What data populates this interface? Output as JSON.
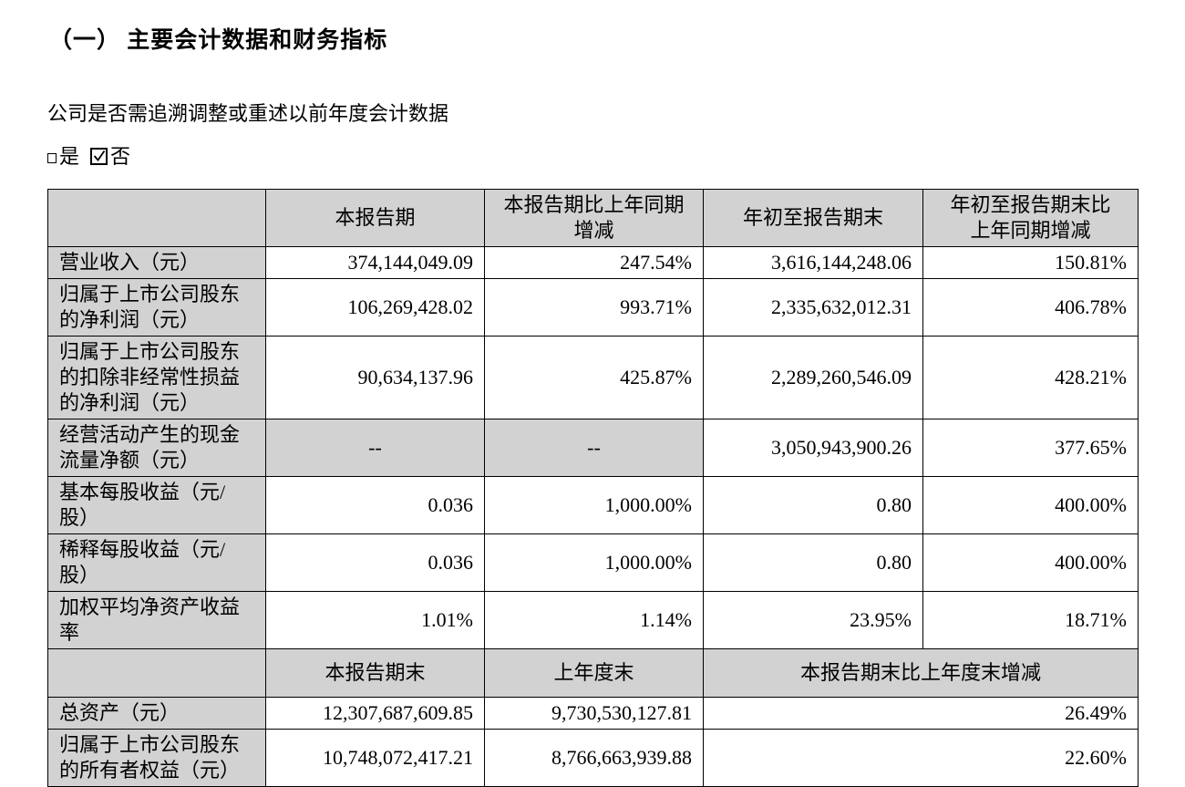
{
  "colors": {
    "shading": "#d2d2d2",
    "border": "#000000",
    "text": "#000000"
  },
  "page": {
    "section_title": "（一） 主要会计数据和财务指标",
    "question": "公司是否需追溯调整或重述以前年度会计数据",
    "option_yes": "是",
    "option_no": "否",
    "yes_checked": false,
    "no_checked": true
  },
  "table": {
    "header1": [
      "",
      "本报告期",
      "本报告期比上年同期增减",
      "年初至报告期末",
      "年初至报告期末比上年同期增减"
    ],
    "rows1": [
      {
        "label": "营业收入（元）",
        "values": [
          "374,144,049.09",
          "247.54%",
          "3,616,144,248.06",
          "150.81%"
        ]
      },
      {
        "label": "归属于上市公司股东的净利润（元）",
        "values": [
          "106,269,428.02",
          "993.71%",
          "2,335,632,012.31",
          "406.78%"
        ]
      },
      {
        "label": "归属于上市公司股东的扣除非经常性损益的净利润（元）",
        "values": [
          "90,634,137.96",
          "425.87%",
          "2,289,260,546.09",
          "428.21%"
        ]
      },
      {
        "label": "经营活动产生的现金流量净额（元）",
        "values": [
          "--",
          "--",
          "3,050,943,900.26",
          "377.65%"
        ],
        "shaded": [
          0,
          1
        ]
      },
      {
        "label": "基本每股收益（元/股）",
        "values": [
          "0.036",
          "1,000.00%",
          "0.80",
          "400.00%"
        ]
      },
      {
        "label": "稀释每股收益（元/股）",
        "values": [
          "0.036",
          "1,000.00%",
          "0.80",
          "400.00%"
        ]
      },
      {
        "label": "加权平均净资产收益率",
        "values": [
          "1.01%",
          "1.14%",
          "23.95%",
          "18.71%"
        ]
      }
    ],
    "header2": [
      "",
      "本报告期末",
      "上年度末",
      "本报告期末比上年度末增减"
    ],
    "rows2": [
      {
        "label": "总资产（元）",
        "values": [
          "12,307,687,609.85",
          "9,730,530,127.81",
          "26.49%"
        ]
      },
      {
        "label": "归属于上市公司股东的所有者权益（元）",
        "values": [
          "10,748,072,417.21",
          "8,766,663,939.88",
          "22.60%"
        ]
      }
    ]
  }
}
